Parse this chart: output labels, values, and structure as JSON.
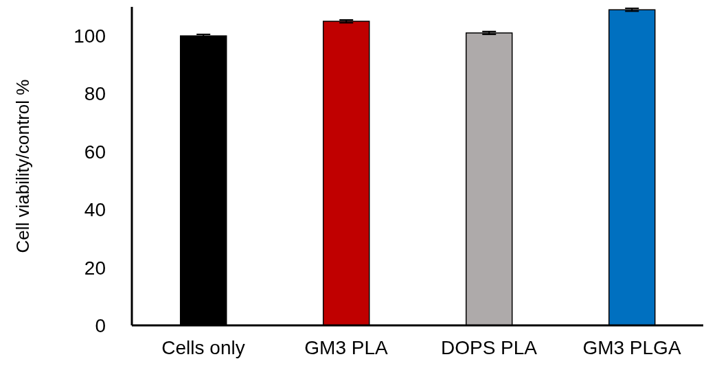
{
  "chart_data": {
    "type": "bar",
    "ylabel": "Cell viability/control %",
    "categories": [
      "Cells only",
      "GM3 PLA",
      "DOPS PLA",
      "GM3 PLGA"
    ],
    "values": [
      100,
      105,
      101,
      109
    ],
    "colors": [
      "#000000",
      "#c00000",
      "#aeaaaa",
      "#0070c0"
    ],
    "errors": [
      0.5,
      0.5,
      0.5,
      0.5
    ],
    "ylim": [
      0,
      110
    ],
    "yticks": [
      0,
      20,
      40,
      60,
      80,
      100
    ],
    "grid": false,
    "legend": false
  }
}
